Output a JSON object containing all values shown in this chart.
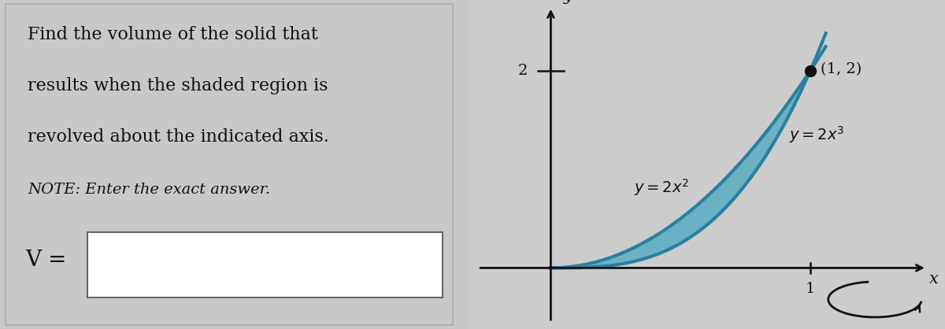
{
  "background_color": "#c8c8c8",
  "left_panel_bg": "#d4d4d4",
  "right_panel_bg": "#cccccc",
  "title_lines": [
    "Find the volume of the solid that",
    "results when the shaded region is",
    "revolved about the indicated axis."
  ],
  "note_line": "NOTE: Enter the exact answer.",
  "v_label": "V =",
  "point_label": "(1, 2)",
  "y_tick": "2",
  "x_tick": "1",
  "x_axis_label": "x",
  "y_axis_label": "y",
  "curve_color": "#2a7fa0",
  "shade_color": "#4aaac0",
  "point_color": "#111111",
  "axis_color": "#111111",
  "text_color": "#111111",
  "title_fontsize": 16,
  "note_fontsize": 14,
  "label_fontsize": 14,
  "tick_fontsize": 14
}
